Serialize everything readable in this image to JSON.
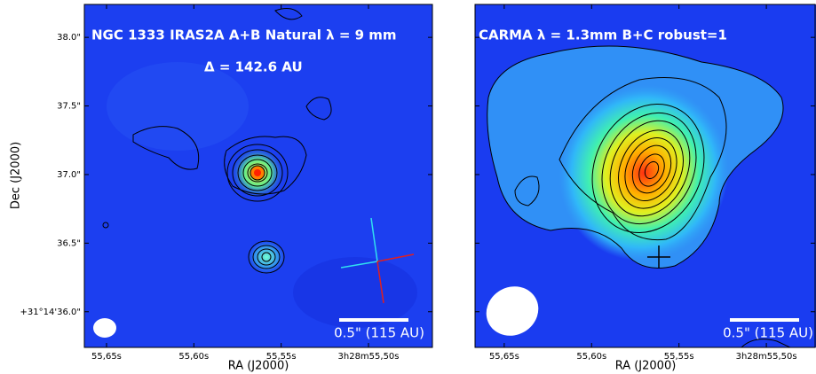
{
  "chart_data": [
    {
      "type": "image",
      "title": "NGC 1333 IRAS2A A+B Natural λ = 9 mm",
      "annotations": [
        "Δ = 142.6 AU",
        "0.5\" (115 AU)"
      ],
      "xlabel": "RA (J2000)",
      "ylabel": "Dec (J2000)",
      "xlim": [
        55.6627,
        55.4634
      ],
      "ylim": [
        35.74,
        38.24
      ],
      "xticks": [
        {
          "value": 55.65,
          "label": "55,65s"
        },
        {
          "value": 55.6,
          "label": "55,60s"
        },
        {
          "value": 55.55,
          "label": "55,55s"
        },
        {
          "value": 55.5,
          "label": "3h28m55,50s"
        }
      ],
      "yticks": [
        {
          "value": 36.0,
          "label": "+31°14'36.0\""
        },
        {
          "value": 36.5,
          "label": "36.5\""
        },
        {
          "value": 37.0,
          "label": "37.0\""
        },
        {
          "value": 37.5,
          "label": "37.5\""
        },
        {
          "value": 38.0,
          "label": "38.0\""
        }
      ]
    },
    {
      "type": "image",
      "title": "CARMA λ = 1.3mm B+C robust=1",
      "annotations": [
        "0.5\" (115 AU)"
      ],
      "xlabel": "RA (J2000)",
      "xlim": [
        55.6667,
        55.4721
      ],
      "ylim": [
        35.74,
        38.24
      ],
      "xticks": [
        {
          "value": 55.65,
          "label": "55,65s"
        },
        {
          "value": 55.6,
          "label": "55,60s"
        },
        {
          "value": 55.55,
          "label": "55,55s"
        },
        {
          "value": 55.5,
          "label": "3h28m55,50s"
        }
      ]
    }
  ]
}
